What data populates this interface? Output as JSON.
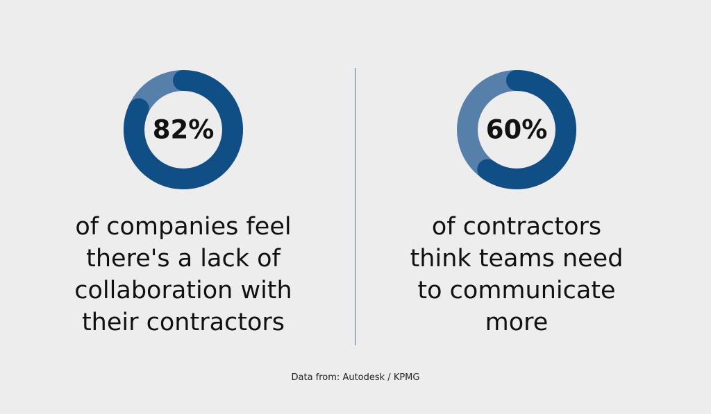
{
  "chart_data": [
    {
      "type": "pie",
      "variant": "donut",
      "value_label": "82%",
      "value": 82,
      "caption_lines": [
        "of companies feel",
        "there's a lack of",
        "collaboration with",
        "their contractors"
      ]
    },
    {
      "type": "pie",
      "variant": "donut",
      "value_label": "60%",
      "value": 60,
      "caption_lines": [
        "of contractors",
        "think teams need",
        "to communicate",
        "more"
      ]
    }
  ],
  "source": "Data from: Autodesk / KPMG",
  "colors": {
    "background": "#ededee",
    "highlight": "#0f4f86",
    "remainder": "#5680aa",
    "divider": "#4c739c",
    "text": "#111111"
  }
}
